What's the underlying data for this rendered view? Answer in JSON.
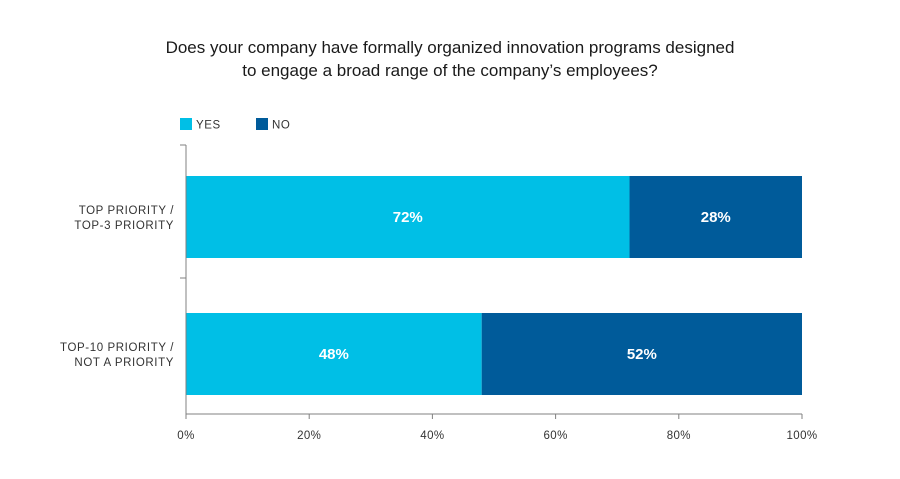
{
  "chart_data": {
    "type": "bar",
    "orientation": "horizontal",
    "stacked": true,
    "title_lines": [
      "Does your company have formally organized innovation programs designed",
      "to engage a broad range of the company’s employees?"
    ],
    "categories": [
      [
        "TOP PRIORITY /",
        "TOP-3 PRIORITY"
      ],
      [
        "TOP-10 PRIORITY /",
        "NOT A PRIORITY"
      ]
    ],
    "series": [
      {
        "name": "YES",
        "color": "#00bfe6",
        "values": [
          72,
          48
        ],
        "labels": [
          "72%",
          "48%"
        ]
      },
      {
        "name": "NO",
        "color": "#005b9a",
        "values": [
          28,
          52
        ],
        "labels": [
          "28%",
          "52%"
        ]
      }
    ],
    "xlim": [
      0,
      100
    ],
    "xticks": [
      0,
      20,
      40,
      60,
      80,
      100
    ],
    "xtick_labels": [
      "0%",
      "20%",
      "40%",
      "60%",
      "80%",
      "100%"
    ],
    "grid": false,
    "legend_position": "top-left"
  }
}
